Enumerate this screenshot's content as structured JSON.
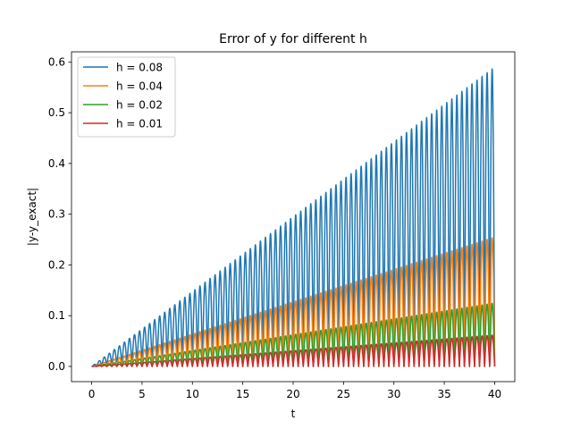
{
  "chart_data": {
    "type": "line",
    "title": "Error of y for different h",
    "xlabel": "t",
    "ylabel": "|y-y_exact|",
    "xlim": [
      -2,
      42
    ],
    "ylim": [
      -0.03,
      0.62
    ],
    "xticks": [
      0,
      5,
      10,
      15,
      20,
      25,
      30,
      35,
      40
    ],
    "yticks": [
      0.0,
      0.1,
      0.2,
      0.3,
      0.4,
      0.5,
      0.6
    ],
    "xtick_labels": [
      "0",
      "5",
      "10",
      "15",
      "20",
      "25",
      "30",
      "35",
      "40"
    ],
    "ytick_labels": [
      "0.0",
      "0.1",
      "0.2",
      "0.3",
      "0.4",
      "0.5",
      "0.6"
    ],
    "grid": false,
    "legend_position": "top-left",
    "x_range": [
      0,
      40
    ],
    "oscillation_period": 0.5,
    "series": [
      {
        "name": "h = 0.08",
        "color": "#1f77b4",
        "envelope_max": 0.59
      },
      {
        "name": "h = 0.04",
        "color": "#ff7f0e",
        "envelope_max": 0.255
      },
      {
        "name": "h = 0.02",
        "color": "#2ca02c",
        "envelope_max": 0.125
      },
      {
        "name": "h = 0.01",
        "color": "#d62728",
        "envelope_max": 0.062
      }
    ]
  }
}
